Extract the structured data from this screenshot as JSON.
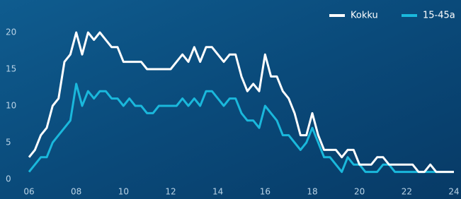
{
  "chart_data": {
    "type": "line",
    "x": [
      6,
      6.25,
      6.5,
      6.75,
      7,
      7.25,
      7.5,
      7.75,
      8,
      8.25,
      8.5,
      8.75,
      9,
      9.25,
      9.5,
      9.75,
      10,
      10.25,
      10.5,
      10.75,
      11,
      11.25,
      11.5,
      11.75,
      12,
      12.25,
      12.5,
      12.75,
      13,
      13.25,
      13.5,
      13.75,
      14,
      14.25,
      14.5,
      14.75,
      15,
      15.25,
      15.5,
      15.75,
      16,
      16.25,
      16.5,
      16.75,
      17,
      17.25,
      17.5,
      17.75,
      18,
      18.25,
      18.5,
      18.75,
      19,
      19.25,
      19.5,
      19.75,
      20,
      20.25,
      20.5,
      20.75,
      21,
      21.25,
      21.5,
      21.75,
      22,
      22.25,
      22.5,
      22.75,
      23,
      23.25,
      23.5,
      23.75,
      24
    ],
    "series": [
      {
        "name": "Kokku",
        "color": "#ffffff",
        "values": [
          3,
          4,
          6,
          7,
          10,
          11,
          16,
          17,
          20,
          17,
          20,
          19,
          20,
          19,
          18,
          18,
          16,
          16,
          16,
          16,
          15,
          15,
          15,
          15,
          15,
          16,
          17,
          16,
          18,
          16,
          18,
          18,
          17,
          16,
          17,
          17,
          14,
          12,
          13,
          12,
          17,
          14,
          14,
          12,
          11,
          9,
          6,
          6,
          9,
          6,
          4,
          4,
          4,
          3,
          4,
          4,
          2,
          2,
          2,
          3,
          3,
          2,
          2,
          2,
          2,
          2,
          1,
          1,
          2,
          1,
          1,
          1,
          1
        ]
      },
      {
        "name": "15-45a",
        "color": "#1ab8dc",
        "values": [
          1,
          2,
          3,
          3,
          5,
          6,
          7,
          8,
          13,
          10,
          12,
          11,
          12,
          12,
          11,
          11,
          10,
          11,
          10,
          10,
          9,
          9,
          10,
          10,
          10,
          10,
          11,
          10,
          11,
          10,
          12,
          12,
          11,
          10,
          11,
          11,
          9,
          8,
          8,
          7,
          10,
          9,
          8,
          6,
          6,
          5,
          4,
          5,
          7,
          5,
          3,
          3,
          2,
          1,
          3,
          2,
          2,
          1,
          1,
          1,
          2,
          2,
          1,
          1,
          1,
          1,
          1,
          1,
          1,
          1,
          1,
          1,
          1
        ]
      }
    ],
    "xlim": [
      6,
      24
    ],
    "xticks": [
      {
        "value": 6,
        "label": "06"
      },
      {
        "value": 8,
        "label": "08"
      },
      10,
      12,
      14,
      16,
      18,
      20,
      22,
      24
    ],
    "ylim": [
      0,
      20
    ],
    "yticks": [
      0,
      5,
      10,
      15,
      20
    ],
    "legend": "top-right"
  }
}
